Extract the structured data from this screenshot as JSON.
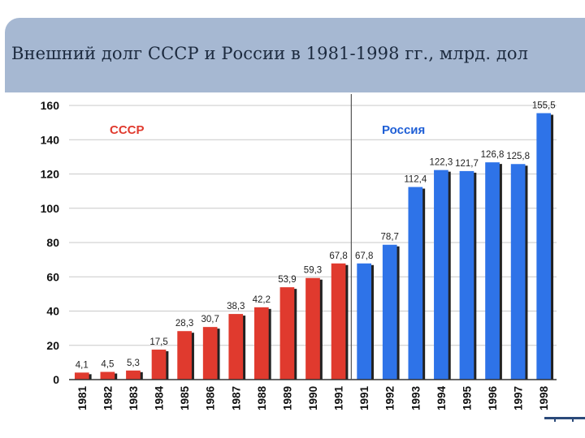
{
  "page": {
    "title": "Внешний долг СССР и России в 1981-1998 гг., млрд. дол"
  },
  "colors": {
    "ussr_bar": "#e03a2e",
    "russia_bar": "#2e73e8",
    "shadow": "#222222",
    "ussr_label": "#e03a2e",
    "russia_label": "#1f5fd6",
    "title_bar": "#a6b8d2"
  },
  "chart_data": {
    "type": "bar",
    "title": "Внешний долг СССР и России в 1981-1998 гг., млрд. дол",
    "categories": [
      "1981",
      "1982",
      "1983",
      "1984",
      "1985",
      "1986",
      "1987",
      "1988",
      "1989",
      "1990",
      "1991",
      "1991",
      "1992",
      "1993",
      "1994",
      "1995",
      "1996",
      "1997",
      "1998"
    ],
    "values": [
      4.1,
      4.5,
      5.3,
      17.5,
      28.3,
      30.7,
      38.3,
      42.2,
      53.9,
      59.3,
      67.8,
      67.8,
      78.7,
      112.4,
      122.3,
      121.7,
      126.8,
      125.8,
      155.5
    ],
    "data_labels": [
      "4,1",
      "4,5",
      "5,3",
      "17,5",
      "28,3",
      "30,7",
      "38,3",
      "42,2",
      "53,9",
      "59,3",
      "67,8",
      "67,8",
      "78,7",
      "112,4",
      "122,3",
      "121,7",
      "126,8",
      "125,8",
      "155,5"
    ],
    "series": [
      {
        "name": "СССР",
        "first_index": 0,
        "last_index": 10
      },
      {
        "name": "Россия",
        "first_index": 11,
        "last_index": 18
      }
    ],
    "ylim": [
      0,
      160
    ],
    "yticks": [
      0,
      20,
      40,
      60,
      80,
      100,
      120,
      140,
      160
    ],
    "grid": true,
    "divider_after_index": 10,
    "xlabel": "",
    "ylabel": ""
  }
}
